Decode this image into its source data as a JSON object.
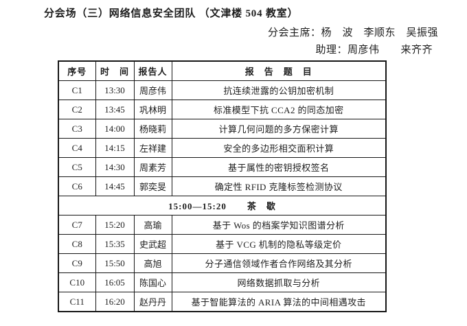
{
  "page": {
    "title": "分会场（三）网络信息安全团队 （文津楼 504 教室）",
    "chairs_line": "分会主席：杨　波　李顺东　吴振强",
    "assistant_line": "助理：周彦伟　　来齐齐"
  },
  "table": {
    "headers": [
      "序号",
      "时　间",
      "报告人",
      "报　告　题　目"
    ],
    "rows": [
      {
        "type": "talk",
        "id": "C1",
        "time": "13:30",
        "speaker": "周彦伟",
        "title": "抗连续泄露的公钥加密机制"
      },
      {
        "type": "talk",
        "id": "C2",
        "time": "13:45",
        "speaker": "巩林明",
        "title": "标准模型下抗 CCA2 的同态加密"
      },
      {
        "type": "talk",
        "id": "C3",
        "time": "14:00",
        "speaker": "杨晓莉",
        "title": "计算几何问题的多方保密计算"
      },
      {
        "type": "talk",
        "id": "C4",
        "time": "14:15",
        "speaker": "左祥建",
        "title": "安全的多边形相交面积计算"
      },
      {
        "type": "talk",
        "id": "C5",
        "time": "14:30",
        "speaker": "周素芳",
        "title": "基于属性的密钥授权签名"
      },
      {
        "type": "talk",
        "id": "C6",
        "time": "14:45",
        "speaker": "郭奕旻",
        "title": "确定性 RFID 克隆标签检测协议"
      },
      {
        "type": "break",
        "time": "15:00—15:20",
        "label": "茶　歇"
      },
      {
        "type": "talk",
        "id": "C7",
        "time": "15:20",
        "speaker": "高瑜",
        "title": "基于 Wos 的档案学知识图谱分析"
      },
      {
        "type": "talk",
        "id": "C8",
        "time": "15:35",
        "speaker": "史武超",
        "title": "基于 VCG 机制的隐私等级定价"
      },
      {
        "type": "talk",
        "id": "C9",
        "time": "15:50",
        "speaker": "高旭",
        "title": "分子通信领域作者合作网络及其分析"
      },
      {
        "type": "talk",
        "id": "C10",
        "time": "16:05",
        "speaker": "陈国心",
        "title": "网络数据抓取与分析"
      },
      {
        "type": "talk",
        "id": "C11",
        "time": "16:20",
        "speaker": "赵丹丹",
        "title": "基于智能算法的 ARIA 算法的中间相遇攻击"
      }
    ]
  }
}
